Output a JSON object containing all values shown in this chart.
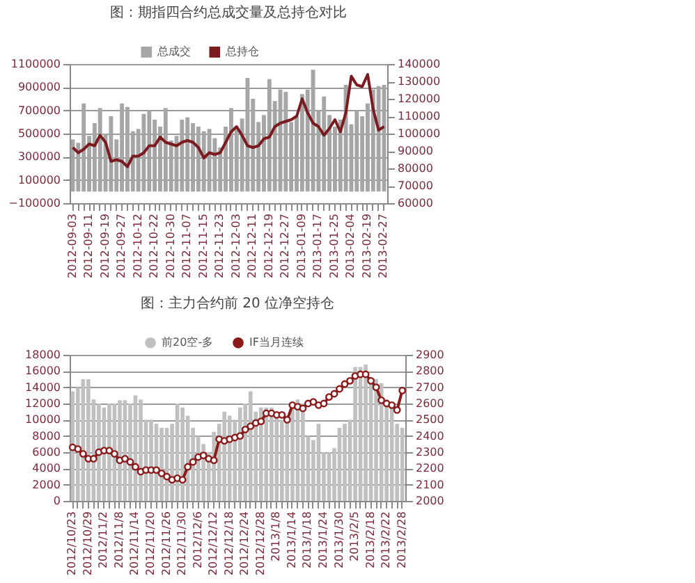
{
  "chart_data": [
    {
      "type": "bar",
      "title": "图：期指四合约总成交量及总持仓对比",
      "categories": [
        "2012-09-03",
        null,
        null,
        "2012-09-11",
        null,
        null,
        "2012-09-19",
        null,
        null,
        "2012-09-27",
        null,
        null,
        "2012-10-12",
        null,
        null,
        "2012-10-22",
        null,
        null,
        "2012-10-30",
        null,
        null,
        "2012-11-07",
        null,
        null,
        "2012-11-15",
        null,
        null,
        "2012-11-23",
        null,
        null,
        "2012-12-03",
        null,
        null,
        "2012-12-11",
        null,
        null,
        "2012-12-19",
        null,
        null,
        "2012-12-27",
        null,
        null,
        "2013-01-09",
        null,
        null,
        "2013-01-17",
        null,
        null,
        "2013-01-25",
        null,
        null,
        "2013-02-04",
        null,
        null,
        "2013-02-19",
        null,
        null,
        "2013-02-27"
      ],
      "series": [
        {
          "name": "总成交",
          "color": "#a6a6a6",
          "values": [
            450000,
            420000,
            760000,
            480000,
            590000,
            720000,
            500000,
            650000,
            450000,
            760000,
            730000,
            520000,
            540000,
            670000,
            700000,
            620000,
            560000,
            720000,
            440000,
            480000,
            620000,
            640000,
            590000,
            560000,
            520000,
            540000,
            460000,
            380000,
            560000,
            720000,
            540000,
            630000,
            980000,
            800000,
            600000,
            660000,
            970000,
            780000,
            880000,
            860000,
            600000,
            650000,
            840000,
            880000,
            1050000,
            700000,
            820000,
            660000,
            560000,
            620000,
            920000,
            580000,
            700000,
            650000,
            760000,
            880000,
            910000,
            920000
          ]
        },
        {
          "name": "总持仓",
          "type": "line",
          "axis": "y2",
          "color": "#7b1a1f",
          "values": [
            92000,
            89000,
            91000,
            94000,
            93000,
            99000,
            95000,
            84000,
            85000,
            84000,
            81000,
            87000,
            87000,
            89000,
            93000,
            93000,
            98000,
            95000,
            94000,
            93000,
            95000,
            96000,
            95000,
            92000,
            86000,
            89000,
            88000,
            89000,
            95000,
            101000,
            104000,
            99000,
            93000,
            92000,
            93000,
            97000,
            98000,
            104000,
            106000,
            107000,
            108000,
            110000,
            120000,
            112000,
            106000,
            104000,
            99000,
            103000,
            108000,
            101000,
            112000,
            133000,
            128000,
            127000,
            134000,
            114000,
            102000,
            104000
          ]
        }
      ],
      "ylim": [
        -100000,
        1100000
      ],
      "yticks": [
        -100000,
        100000,
        300000,
        500000,
        700000,
        900000,
        1100000
      ],
      "y2lim": [
        60000,
        140000
      ],
      "y2ticks": [
        60000,
        70000,
        80000,
        90000,
        100000,
        110000,
        120000,
        130000,
        140000
      ],
      "grid": "y",
      "legend": "top"
    },
    {
      "type": "bar",
      "title": "图：主力合约前 20 位净空持仓",
      "categories": [
        "2012/10/23",
        null,
        null,
        "2012/10/29",
        null,
        null,
        "2012/11/2",
        null,
        null,
        "2012/11/8",
        null,
        null,
        "2012/11/14",
        null,
        null,
        "2012/11/20",
        null,
        null,
        "2012/11/26",
        null,
        null,
        "2012/11/30",
        null,
        null,
        "2012/12/6",
        null,
        null,
        "2012/12/12",
        null,
        null,
        "2012/12/18",
        null,
        null,
        "2012/12/24",
        null,
        null,
        "2012/12/28",
        null,
        null,
        "2013/1/8",
        null,
        null,
        "2013/1/14",
        null,
        null,
        "2013/1/18",
        null,
        null,
        "2013/1/24",
        null,
        null,
        "2013/1/30",
        null,
        null,
        "2013/2/5",
        null,
        null,
        "2013/2/18",
        null,
        null,
        "2013/2/22",
        null,
        null,
        "2013/2/28"
      ],
      "series": [
        {
          "name": "前20空-多",
          "color": "#c0c0c0",
          "values": [
            13500,
            14000,
            15000,
            15000,
            12500,
            12000,
            11500,
            12000,
            12000,
            12400,
            12400,
            12000,
            13000,
            12500,
            10000,
            10000,
            9500,
            9000,
            9000,
            9500,
            12000,
            11500,
            10500,
            9000,
            8000,
            7000,
            6000,
            8500,
            9500,
            11000,
            10500,
            10000,
            11500,
            12000,
            13500,
            11000,
            11500,
            11500,
            11500,
            11000,
            10000,
            10500,
            12000,
            12500,
            12000,
            8000,
            7500,
            9500,
            6000,
            6000,
            6500,
            9000,
            9500,
            10000,
            16500,
            16500,
            16800,
            15000,
            15000,
            14500,
            12500,
            11500,
            9500,
            9000
          ]
        },
        {
          "name": "IF当月连续",
          "type": "line",
          "axis": "y2",
          "color": "#8b1a1a",
          "marker": "circle",
          "values": [
            2330,
            2320,
            2290,
            2260,
            2260,
            2300,
            2310,
            2310,
            2290,
            2250,
            2260,
            2240,
            2210,
            2180,
            2190,
            2190,
            2190,
            2170,
            2150,
            2130,
            2140,
            2130,
            2210,
            2240,
            2270,
            2280,
            2260,
            2250,
            2380,
            2370,
            2380,
            2390,
            2400,
            2440,
            2460,
            2480,
            2490,
            2540,
            2540,
            2530,
            2530,
            2500,
            2590,
            2580,
            2570,
            2600,
            2610,
            2590,
            2600,
            2640,
            2660,
            2690,
            2720,
            2740,
            2770,
            2780,
            2780,
            2740,
            2700,
            2620,
            2600,
            2590,
            2560,
            2680
          ]
        }
      ],
      "ylim": [
        0,
        18000
      ],
      "yticks": [
        0,
        2000,
        4000,
        6000,
        8000,
        10000,
        12000,
        14000,
        16000,
        18000
      ],
      "y2lim": [
        2000,
        2900
      ],
      "y2ticks": [
        2000,
        2100,
        2200,
        2300,
        2400,
        2500,
        2600,
        2700,
        2800,
        2900
      ],
      "grid": "y",
      "legend": "top"
    }
  ]
}
